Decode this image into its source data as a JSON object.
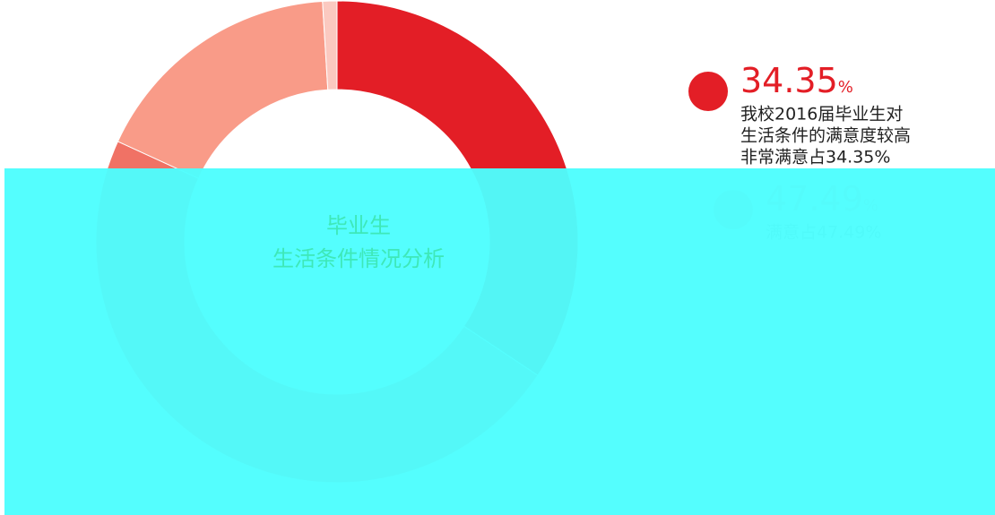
{
  "chart_data": {
    "type": "donut",
    "title": "毕业生",
    "subtitle": "生活条件情况分析",
    "categories": [
      "非常满意",
      "满意",
      null,
      null
    ],
    "values": [
      34.35,
      47.49,
      17.2,
      0.96
    ],
    "colors": [
      "#e31e26",
      "#f07265",
      "#f99b88",
      "#fbc9c0"
    ],
    "unit": "%",
    "legend": [
      {
        "index": 0,
        "lines": [
          "我校2016届毕业生对",
          "生活条件的满意度较高",
          "非常满意占34.35%"
        ]
      },
      {
        "index": 1,
        "lines": [
          "满意占47.49%"
        ]
      }
    ]
  }
}
